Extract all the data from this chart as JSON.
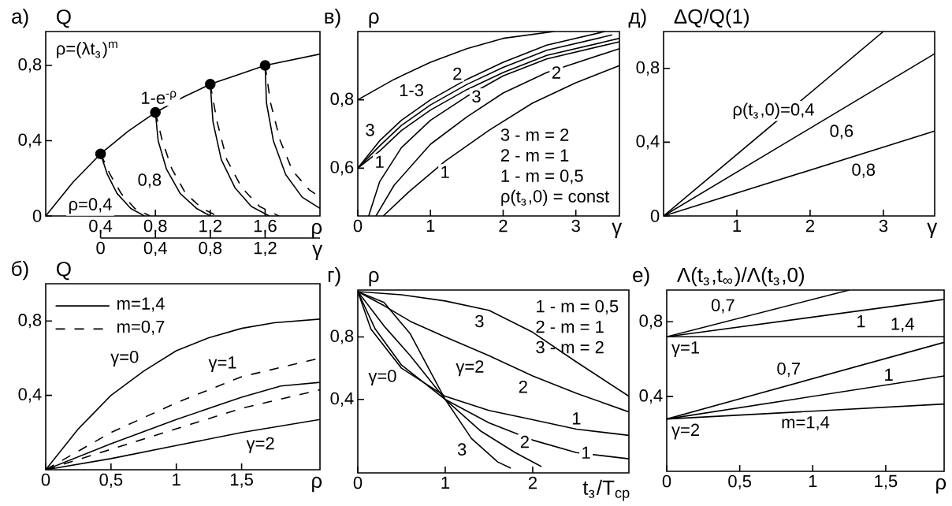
{
  "chart_data": [
    {
      "type": "line",
      "title": "а)",
      "ylabel": "Q",
      "xlabel": "ρ",
      "x2label": "γ",
      "xlim": [
        0,
        2
      ],
      "ylim": [
        0,
        0.98
      ],
      "xticks": [
        {
          "value": 0.4,
          "label": "0,4"
        },
        {
          "value": 0.8,
          "label": "0,8"
        },
        {
          "value": 1.2,
          "label": "1,2"
        },
        {
          "value": 1.6,
          "label": "1,6"
        }
      ],
      "yticks": [
        0,
        {
          "value": 0.4,
          "label": "0,4"
        },
        {
          "value": 0.8,
          "label": "0,8"
        }
      ],
      "x2lim": [
        0,
        1.6
      ],
      "x2ticks": [
        0,
        {
          "value": 0.4,
          "label": "0,4"
        },
        {
          "value": 0.8,
          "label": "0,8"
        },
        {
          "value": 1.2,
          "label": "1,2"
        }
      ],
      "series": [
        {
          "color": "#000000",
          "x": [
            0,
            0.2,
            0.4,
            0.6,
            0.8,
            1.0,
            1.2,
            1.4,
            1.6,
            1.8,
            2.0
          ],
          "values": [
            0,
            0.18,
            0.33,
            0.45,
            0.55,
            0.63,
            0.7,
            0.75,
            0.8,
            0.83,
            0.86
          ]
        },
        {
          "color": "#000000",
          "x": [
            0.4,
            0.45,
            0.52,
            0.62,
            0.72
          ],
          "values": [
            0.33,
            0.22,
            0.12,
            0.04,
            0
          ]
        },
        {
          "color": "#000000",
          "line_style": "dashed",
          "x": [
            0.4,
            0.47,
            0.55,
            0.65,
            0.76
          ],
          "values": [
            0.33,
            0.22,
            0.12,
            0.04,
            0
          ]
        },
        {
          "color": "#000000",
          "x": [
            0.8,
            0.82,
            0.88,
            0.98,
            1.1,
            1.2
          ],
          "values": [
            0.55,
            0.4,
            0.25,
            0.12,
            0.04,
            0
          ]
        },
        {
          "color": "#000000",
          "line_style": "dashed",
          "x": [
            0.8,
            0.85,
            0.92,
            1.02,
            1.14,
            1.25
          ],
          "values": [
            0.55,
            0.4,
            0.25,
            0.12,
            0.04,
            0
          ]
        },
        {
          "color": "#000000",
          "x": [
            1.2,
            1.22,
            1.28,
            1.38,
            1.5,
            1.63
          ],
          "values": [
            0.7,
            0.5,
            0.3,
            0.15,
            0.05,
            0
          ]
        },
        {
          "color": "#000000",
          "line_style": "dashed",
          "x": [
            1.2,
            1.25,
            1.32,
            1.43,
            1.56,
            1.7
          ],
          "values": [
            0.7,
            0.5,
            0.3,
            0.15,
            0.05,
            0
          ]
        },
        {
          "color": "#000000",
          "x": [
            1.6,
            1.61,
            1.66,
            1.75,
            1.87,
            2.0
          ],
          "values": [
            0.8,
            0.6,
            0.4,
            0.22,
            0.1,
            0.04
          ]
        },
        {
          "color": "#000000",
          "line_style": "dashed",
          "x": [
            1.6,
            1.64,
            1.71,
            1.8,
            1.92,
            2.0
          ],
          "values": [
            0.8,
            0.6,
            0.4,
            0.24,
            0.14,
            0.1
          ]
        },
        {
          "type": "scatter",
          "color": "#000000",
          "x": [
            0.4,
            0.8,
            1.2,
            1.6
          ],
          "values": [
            0.33,
            0.55,
            0.7,
            0.8
          ]
        }
      ],
      "annotations": [
        "ρ=(λt$_{з}$)$^{m}$",
        {
          "text": "1-e$^{-ρ}$",
          "x": 1.0,
          "y": 0.63
        },
        {
          "text": "0,8",
          "x": 0.88,
          "y": 0.25
        },
        {
          "text": "ρ=0,4",
          "x": 0.52,
          "y": 0.12
        }
      ]
    },
    {
      "type": "line",
      "title": "в)",
      "ylabel": "ρ",
      "xlabel": "γ",
      "xlim": [
        0,
        3.6
      ],
      "ylim": [
        0.46,
        1.0
      ],
      "xticks": [
        0,
        1,
        2,
        3
      ],
      "yticks": [
        {
          "value": 0.6,
          "label": "0,6"
        },
        {
          "value": 0.8,
          "label": "0,8"
        }
      ],
      "series": [
        {
          "color": "#000000",
          "x": [
            0,
            0.5,
            1,
            1.5,
            2,
            2.7
          ],
          "values": [
            0.8,
            0.86,
            0.91,
            0.95,
            0.98,
            1.0
          ]
        },
        {
          "color": "#000000",
          "x": [
            0,
            0.3,
            0.6,
            1,
            1.5,
            2,
            2.6,
            3.4
          ],
          "values": [
            0.6,
            0.68,
            0.74,
            0.8,
            0.86,
            0.91,
            0.96,
            1.0
          ]
        },
        {
          "color": "#000000",
          "x": [
            0,
            0.3,
            0.6,
            1,
            1.5,
            2,
            2.6,
            3.5
          ],
          "values": [
            0.6,
            0.665,
            0.725,
            0.785,
            0.845,
            0.895,
            0.945,
            0.99
          ]
        },
        {
          "color": "#000000",
          "x": [
            0,
            0.3,
            0.6,
            1,
            1.5,
            2,
            2.6,
            3.6
          ],
          "values": [
            0.6,
            0.65,
            0.71,
            0.77,
            0.83,
            0.88,
            0.93,
            0.98
          ]
        },
        {
          "color": "#000000",
          "x": [
            0.15,
            0.3,
            0.6,
            1,
            1.5,
            2,
            2.6,
            3.6
          ],
          "values": [
            0.46,
            0.56,
            0.66,
            0.74,
            0.81,
            0.87,
            0.92,
            0.97
          ]
        },
        {
          "color": "#000000",
          "x": [
            0.25,
            0.5,
            1,
            1.5,
            2,
            2.6,
            3.6
          ],
          "values": [
            0.46,
            0.55,
            0.67,
            0.75,
            0.82,
            0.88,
            0.95
          ]
        },
        {
          "color": "#000000",
          "x": [
            0.35,
            0.7,
            1.2,
            1.8,
            2.4,
            3,
            3.6
          ],
          "values": [
            0.46,
            0.53,
            0.62,
            0.71,
            0.79,
            0.85,
            0.9
          ]
        }
      ],
      "annotations": [
        {
          "text": "1-3",
          "x": 0.5,
          "y": 0.86
        },
        {
          "text": "3",
          "x": 0.3,
          "y": 0.68
        },
        {
          "text": "2",
          "x": 1.5,
          "y": 0.845
        },
        {
          "text": "1",
          "x": 0.3,
          "y": 0.65
        },
        {
          "text": "3",
          "x": 1.5,
          "y": 0.81
        },
        {
          "text": "2",
          "x": 2.6,
          "y": 0.88
        },
        {
          "text": "1",
          "x": 1.2,
          "y": 0.62
        },
        "3 - m = 2",
        "2 - m = 1",
        "1 - m = 0,5",
        "ρ(t$_{з}$,0) = const"
      ]
    },
    {
      "type": "line",
      "title": "д)",
      "ylabel": "ΔQ/Q(1)",
      "xlabel": "γ",
      "xlim": [
        0,
        3.7
      ],
      "ylim": [
        0,
        1.0
      ],
      "xticks": [
        1,
        2,
        3
      ],
      "yticks": [
        0,
        {
          "value": 0.4,
          "label": "0,4"
        },
        {
          "value": 0.8,
          "label": "0,8"
        }
      ],
      "series": [
        {
          "color": "#000000",
          "x": [
            0,
            3.0
          ],
          "values": [
            0,
            1.0
          ]
        },
        {
          "color": "#000000",
          "x": [
            0,
            3.7
          ],
          "values": [
            0,
            0.88
          ]
        },
        {
          "color": "#000000",
          "x": [
            0,
            3.7
          ],
          "values": [
            0,
            0.46
          ]
        }
      ],
      "annotations": [
        {
          "text": "ρ(t$_{з}$,0)=0,4",
          "x": 1.5,
          "y": 0.5
        },
        {
          "text": "0,6",
          "x": 2.2,
          "y": 0.52
        },
        {
          "text": "0,8",
          "x": 2.5,
          "y": 0.31
        }
      ]
    },
    {
      "type": "line",
      "title": "б)",
      "ylabel": "Q",
      "xlabel": "ρ",
      "xlim": [
        0,
        2.1
      ],
      "ylim": [
        0,
        1.0
      ],
      "xticks": [
        0,
        {
          "value": 0.5,
          "label": "0,5"
        },
        1,
        {
          "value": 1.5,
          "label": "1,5"
        }
      ],
      "yticks": [
        {
          "value": 0.4,
          "label": "0,4"
        },
        {
          "value": 0.8,
          "label": "0,8"
        }
      ],
      "legend": "top left",
      "series": [
        {
          "name": "m=1,4",
          "color": "#000000",
          "x": [
            0,
            0.25,
            0.5,
            0.75,
            1,
            1.25,
            1.5,
            1.75,
            2.1
          ],
          "values": [
            0,
            0.22,
            0.4,
            0.53,
            0.64,
            0.71,
            0.76,
            0.79,
            0.81
          ]
        },
        {
          "name": "m=0,7",
          "color": "#000000",
          "line_style": "dashed",
          "x": [
            0,
            0.5,
            1,
            1.5,
            2.1
          ],
          "values": [
            0,
            0.2,
            0.36,
            0.5,
            0.6
          ]
        },
        {
          "color": "#000000",
          "x": [
            0,
            0.5,
            1,
            1.5,
            1.8,
            2.1
          ],
          "values": [
            0,
            0.14,
            0.27,
            0.39,
            0.45,
            0.47
          ]
        },
        {
          "color": "#000000",
          "line_style": "dashed",
          "x": [
            0,
            0.5,
            1,
            1.5,
            2.1
          ],
          "values": [
            0,
            0.11,
            0.22,
            0.33,
            0.43
          ]
        },
        {
          "color": "#000000",
          "x": [
            0,
            0.5,
            1,
            1.5,
            2.1
          ],
          "values": [
            0,
            0.06,
            0.13,
            0.2,
            0.27
          ]
        }
      ],
      "annotations": [
        {
          "text": "γ=0",
          "x": 0.75,
          "y": 0.53
        },
        {
          "text": "γ=1",
          "x": 1.5,
          "y": 0.5
        },
        {
          "text": "γ=2",
          "x": 1.5,
          "y": 0.2
        }
      ]
    },
    {
      "type": "line",
      "title": "г)",
      "ylabel": "ρ",
      "xlabel": "t$_{з}$/T$_{ср}$",
      "xlim": [
        0,
        3.1
      ],
      "ylim": [
        -0.07,
        1.1
      ],
      "xticks": [
        0,
        1,
        2
      ],
      "yticks": [
        {
          "value": 0.4,
          "label": "0,4"
        },
        {
          "value": 0.8,
          "label": "0,8"
        }
      ],
      "series": [
        {
          "color": "#000000",
          "x": [
            0,
            0.5,
            1,
            1.5,
            2,
            2.5,
            3.1
          ],
          "values": [
            1.09,
            1.07,
            1.03,
            0.97,
            0.83,
            0.64,
            0.42
          ]
        },
        {
          "color": "#000000",
          "x": [
            0,
            0.3,
            0.6,
            1,
            1.5,
            2,
            2.5,
            3.1
          ],
          "values": [
            1.09,
            1.0,
            0.9,
            0.8,
            0.68,
            0.55,
            0.44,
            0.32
          ]
        },
        {
          "color": "#000000",
          "x": [
            0,
            0.15,
            0.5,
            1,
            1.5,
            2,
            2.5,
            3.1
          ],
          "values": [
            1.09,
            0.85,
            0.6,
            0.42,
            0.33,
            0.27,
            0.21,
            0.17
          ]
        },
        {
          "color": "#000000",
          "x": [
            0,
            0.2,
            0.5,
            1,
            1.5,
            2,
            2.5,
            3.1
          ],
          "values": [
            1.09,
            0.85,
            0.62,
            0.4,
            0.25,
            0.14,
            0.06,
            0.02
          ]
        },
        {
          "color": "#000000",
          "x": [
            0,
            0.3,
            0.6,
            1,
            1.4,
            1.8,
            2.1
          ],
          "values": [
            1.09,
            0.87,
            0.68,
            0.4,
            0.2,
            0.06,
            -0.03
          ]
        },
        {
          "color": "#000000",
          "x": [
            0,
            0.3,
            0.6,
            1,
            1.3,
            1.6,
            1.75
          ],
          "values": [
            1.09,
            1.02,
            0.82,
            0.4,
            0.15,
            0.0,
            -0.04
          ]
        }
      ],
      "annotations": [
        {
          "text": "3",
          "x": 1.5,
          "y": 0.97
        },
        {
          "text": "γ=2",
          "x": 1.5,
          "y": 0.68
        },
        {
          "text": "2",
          "x": 2,
          "y": 0.55
        },
        {
          "text": "1",
          "x": 2.5,
          "y": 0.21
        },
        {
          "text": "γ=0",
          "x": 0.5,
          "y": 0.62
        },
        {
          "text": "3",
          "x": 1.3,
          "y": 0.15
        },
        {
          "text": "2",
          "x": 1.8,
          "y": 0.06
        },
        {
          "text": "1",
          "x": 2.5,
          "y": 0.06
        },
        "1 - m = 0,5",
        "2 - m = 1",
        "3 - m = 2"
      ]
    },
    {
      "type": "line",
      "title": "е)",
      "ylabel": "Λ(t$_{з}$,t$_{∞}$)/Λ(t$_{з}$,0)",
      "xlabel": "ρ",
      "xlim": [
        0,
        1.9
      ],
      "ylim": [
        0,
        0.97
      ],
      "xticks": [
        0,
        {
          "value": 0.5,
          "label": "0,5"
        },
        1,
        {
          "value": 1.5,
          "label": "1,5"
        }
      ],
      "yticks": [
        {
          "value": 0.4,
          "label": "0,4"
        },
        {
          "value": 0.8,
          "label": "0,8"
        }
      ],
      "series": [
        {
          "color": "#000000",
          "x": [
            0,
            1.25
          ],
          "values": [
            0.72,
            0.97
          ]
        },
        {
          "color": "#000000",
          "x": [
            0,
            1.9
          ],
          "values": [
            0.72,
            0.92
          ]
        },
        {
          "color": "#000000",
          "x": [
            0,
            1.9
          ],
          "values": [
            0.72,
            0.72
          ]
        },
        {
          "color": "#000000",
          "x": [
            0,
            1.9
          ],
          "values": [
            0.28,
            0.69
          ]
        },
        {
          "color": "#000000",
          "x": [
            0,
            1.9
          ],
          "values": [
            0.28,
            0.51
          ]
        },
        {
          "color": "#000000",
          "x": [
            0,
            1.9
          ],
          "values": [
            0.28,
            0.36
          ]
        }
      ],
      "annotations": [
        {
          "text": "0,7",
          "x": 0.5,
          "y": 0.82
        },
        {
          "text": "1",
          "x": 1.33,
          "y": 0.86
        },
        {
          "text": "1,4",
          "x": 1.5,
          "y": 0.72
        },
        {
          "text": "γ=1",
          "x": 0,
          "y": 0.72
        },
        {
          "text": "0,7",
          "x": 0.95,
          "y": 0.48
        },
        {
          "text": "1",
          "x": 1.52,
          "y": 0.46
        },
        {
          "text": "γ=2",
          "x": 0,
          "y": 0.28
        },
        {
          "text": "m=1,4",
          "x": 0.95,
          "y": 0.32
        }
      ]
    }
  ]
}
